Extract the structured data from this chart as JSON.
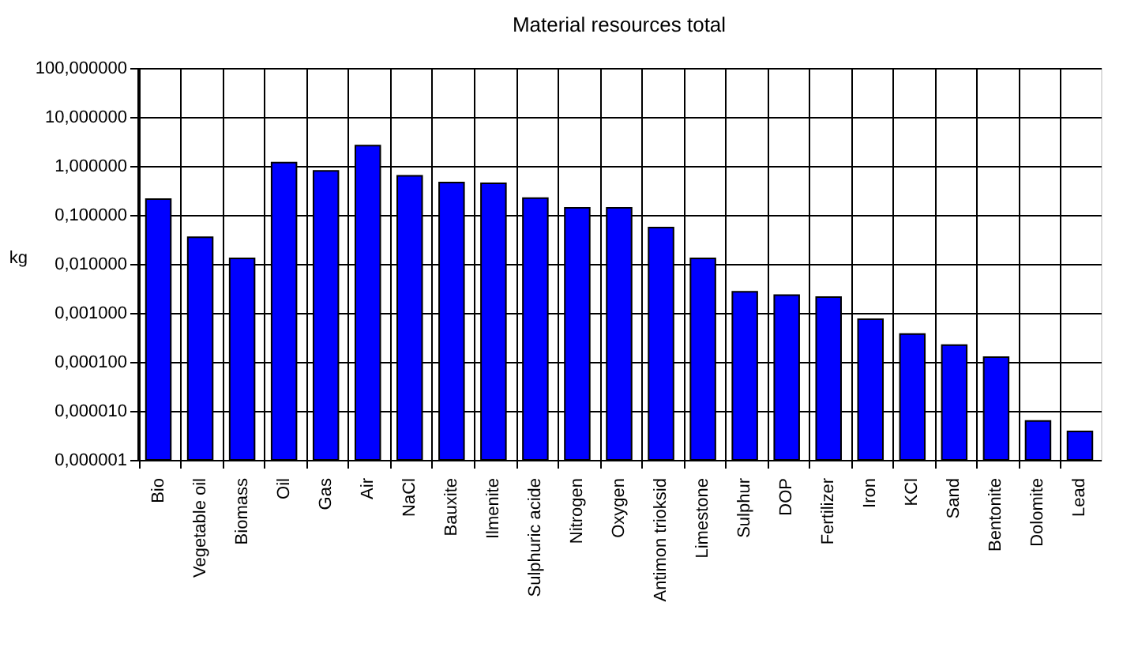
{
  "chart_data": {
    "type": "bar",
    "title": "Material resources total",
    "ylabel": "kg",
    "categories": [
      "Bio",
      "Vegetable oil",
      "Biomass",
      "Oil",
      "Gas",
      "Air",
      "NaCl",
      "Bauxite",
      "Ilmenite",
      "Sulphuric acide",
      "Nitrogen",
      "Oxygen",
      "Antimon trioksid",
      "Limestone",
      "Sulphur",
      "DOP",
      "Fertilizer",
      "Iron",
      "KCl",
      "Sand",
      "Bentonite",
      "Dolomite",
      "Lead"
    ],
    "series": [
      {
        "color": "#0000ff",
        "values": [
          0.21,
          0.035,
          0.013,
          1.17,
          0.79,
          2.6,
          0.63,
          0.46,
          0.44,
          0.22,
          0.14,
          0.14,
          0.055,
          0.013,
          0.0027,
          0.0023,
          0.0021,
          0.00074,
          0.00037,
          0.00022,
          0.000125,
          6.2e-06,
          3.8e-06
        ]
      }
    ],
    "log": "y",
    "ylim": [
      1e-06,
      100
    ],
    "yticks": [
      {
        "value": 1e-06,
        "label": "0,000001"
      },
      {
        "value": 1e-05,
        "label": "0,000010"
      },
      {
        "value": 0.0001,
        "label": "0,000100"
      },
      {
        "value": 0.001,
        "label": "0,001000"
      },
      {
        "value": 0.01,
        "label": "0,010000"
      },
      {
        "value": 0.1,
        "label": "0,100000"
      },
      {
        "value": 1,
        "label": "1,000000"
      },
      {
        "value": 10,
        "label": "10,000000"
      },
      {
        "value": 100,
        "label": "100,000000"
      }
    ],
    "grid": true
  }
}
